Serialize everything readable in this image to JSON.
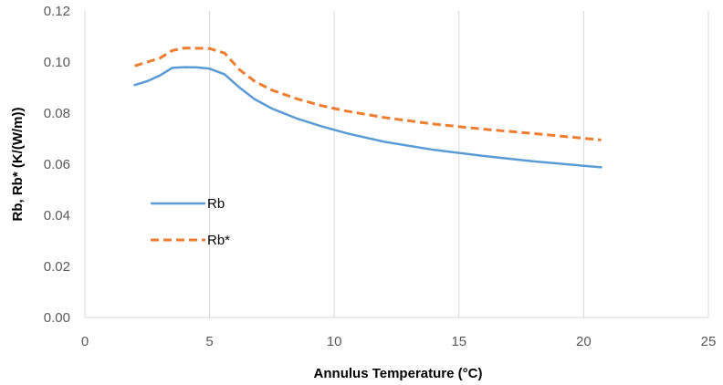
{
  "chart_data": {
    "type": "line",
    "xlabel": "Annulus Temperature (°C)",
    "ylabel": "Rb, Rb* (K/(W/m))",
    "xlim": [
      0,
      25
    ],
    "ylim": [
      0,
      0.12
    ],
    "x_ticks": [
      "0",
      "5",
      "10",
      "15",
      "20",
      "25"
    ],
    "y_ticks": [
      "0.00",
      "0.02",
      "0.04",
      "0.06",
      "0.08",
      "0.10",
      "0.12"
    ],
    "grid": "vertical",
    "legend_position": "left-center",
    "series": [
      {
        "name": "Rb",
        "color": "#5B9BD5",
        "style": "solid",
        "x": [
          2.0,
          2.5,
          3.0,
          3.5,
          4.0,
          4.5,
          5.0,
          5.6,
          6.2,
          6.8,
          7.5,
          8.5,
          9.5,
          10.5,
          12.0,
          14.0,
          16.0,
          18.0,
          20.7
        ],
        "y": [
          0.091,
          0.0925,
          0.0947,
          0.0977,
          0.098,
          0.0979,
          0.0974,
          0.0952,
          0.09,
          0.0855,
          0.0818,
          0.0779,
          0.0748,
          0.0721,
          0.0688,
          0.0656,
          0.0632,
          0.0611,
          0.0588
        ]
      },
      {
        "name": "Rb*",
        "color": "#ED7D31",
        "style": "dashed",
        "x": [
          2.0,
          2.5,
          3.0,
          3.5,
          4.0,
          4.5,
          5.0,
          5.6,
          6.2,
          6.8,
          7.5,
          8.5,
          9.5,
          10.5,
          12.0,
          14.0,
          16.0,
          18.0,
          20.7
        ],
        "y": [
          0.0985,
          0.1,
          0.1015,
          0.1045,
          0.1055,
          0.1054,
          0.1053,
          0.1035,
          0.097,
          0.0925,
          0.089,
          0.0856,
          0.0829,
          0.0808,
          0.0783,
          0.0757,
          0.0737,
          0.072,
          0.0695
        ]
      }
    ]
  }
}
